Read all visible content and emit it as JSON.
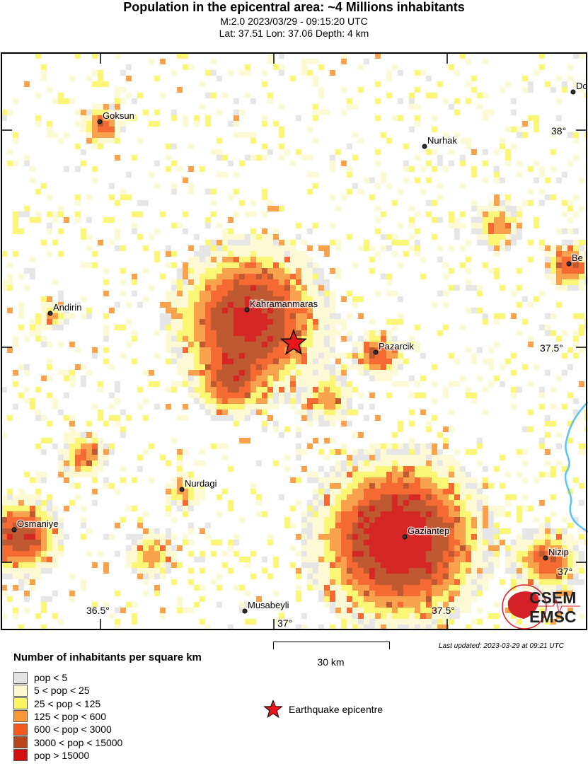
{
  "header": {
    "title": "Population in the epicentral area: ~4 Millions inhabitants",
    "event": "M:2.0 2023/03/29 - 09:15:20 UTC",
    "location": "Lat: 37.51 Lon: 37.06 Depth: 4 km"
  },
  "map": {
    "cities": [
      "Goksun",
      "Nurhak",
      "Do",
      "Be",
      "Andirin",
      "Kahramanmaras",
      "Pazarcik",
      "Nurdagi",
      "Osmaniye",
      "Gaziantep",
      "Nizip",
      "Musabeyli"
    ],
    "lat_ticks": [
      "38°",
      "37.5°",
      "37°"
    ],
    "lon_ticks": [
      "36.5°",
      "37°",
      "37.5°"
    ],
    "epicentre": {
      "lat": 37.51,
      "lon": 37.06,
      "icon": "red-star-icon",
      "color": "#e8161b"
    },
    "river_color": "#5bc4f0",
    "logo": {
      "top": "CSEM",
      "bottom": "EMSC"
    }
  },
  "legend": {
    "title": "Number of inhabitants per square km",
    "classes": [
      {
        "label": "pop < 5",
        "color": "#e3e3e3"
      },
      {
        "label": "5 < pop < 25",
        "color": "#fdf8cf"
      },
      {
        "label": "25 < pop < 125",
        "color": "#fbf566"
      },
      {
        "label": "125 < pop < 600",
        "color": "#f8983a"
      },
      {
        "label": "600 < pop < 3000",
        "color": "#f45a1c"
      },
      {
        "label": "3000 < pop < 15000",
        "color": "#b7471b"
      },
      {
        "label": "pop > 15000",
        "color": "#d20f10"
      }
    ],
    "epicentre_label": "Earthquake epicentre"
  },
  "scale": {
    "label": "30 km"
  },
  "updated": "Last updated: 2023-03-29 at 09:21 UTC"
}
